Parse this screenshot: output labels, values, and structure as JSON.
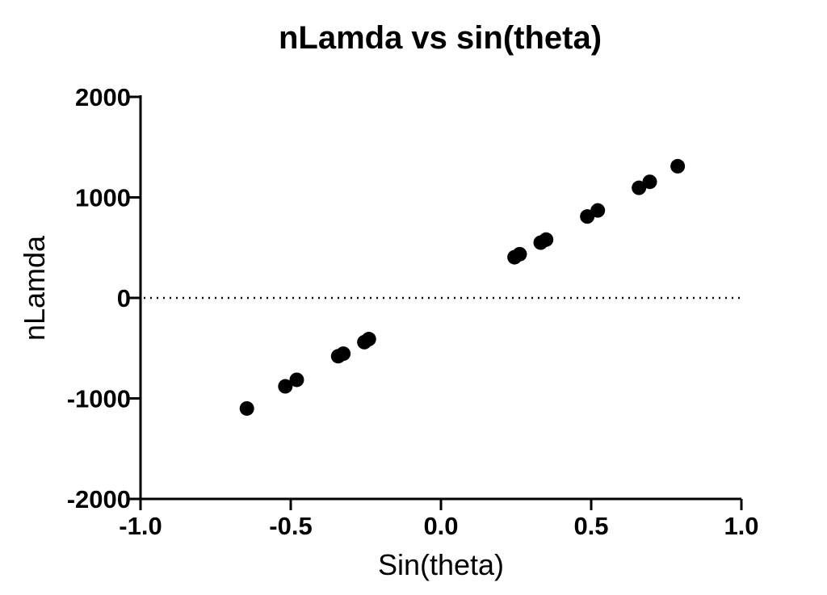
{
  "chart_data": {
    "type": "scatter",
    "title": "nLamda vs sin(theta)",
    "xlabel": "Sin(theta)",
    "ylabel": "nLamda",
    "xlim": [
      -1.0,
      1.0
    ],
    "ylim": [
      -2000,
      2000
    ],
    "xticks": [
      -1.0,
      -0.5,
      0.0,
      0.5,
      1.0
    ],
    "xtick_labels": [
      "-1.0",
      "-0.5",
      "0.0",
      "0.5",
      "1.0"
    ],
    "yticks": [
      -2000,
      -1000,
      0,
      1000,
      2000
    ],
    "ytick_labels": [
      "-2000",
      "-1000",
      "0",
      "1000",
      "2000"
    ],
    "reference_line": {
      "y": 0,
      "style": "dotted"
    },
    "grid": false,
    "legend": "none",
    "marker_color": "#000000",
    "series": [
      {
        "points": [
          {
            "x": -0.646,
            "y": -1100
          },
          {
            "x": -0.518,
            "y": -880
          },
          {
            "x": -0.48,
            "y": -815
          },
          {
            "x": -0.342,
            "y": -580
          },
          {
            "x": -0.325,
            "y": -555
          },
          {
            "x": -0.255,
            "y": -440
          },
          {
            "x": -0.24,
            "y": -410
          },
          {
            "x": 0.245,
            "y": 405
          },
          {
            "x": 0.262,
            "y": 435
          },
          {
            "x": 0.332,
            "y": 550
          },
          {
            "x": 0.35,
            "y": 580
          },
          {
            "x": 0.487,
            "y": 810
          },
          {
            "x": 0.522,
            "y": 870
          },
          {
            "x": 0.659,
            "y": 1095
          },
          {
            "x": 0.695,
            "y": 1155
          },
          {
            "x": 0.788,
            "y": 1310
          }
        ]
      }
    ]
  }
}
